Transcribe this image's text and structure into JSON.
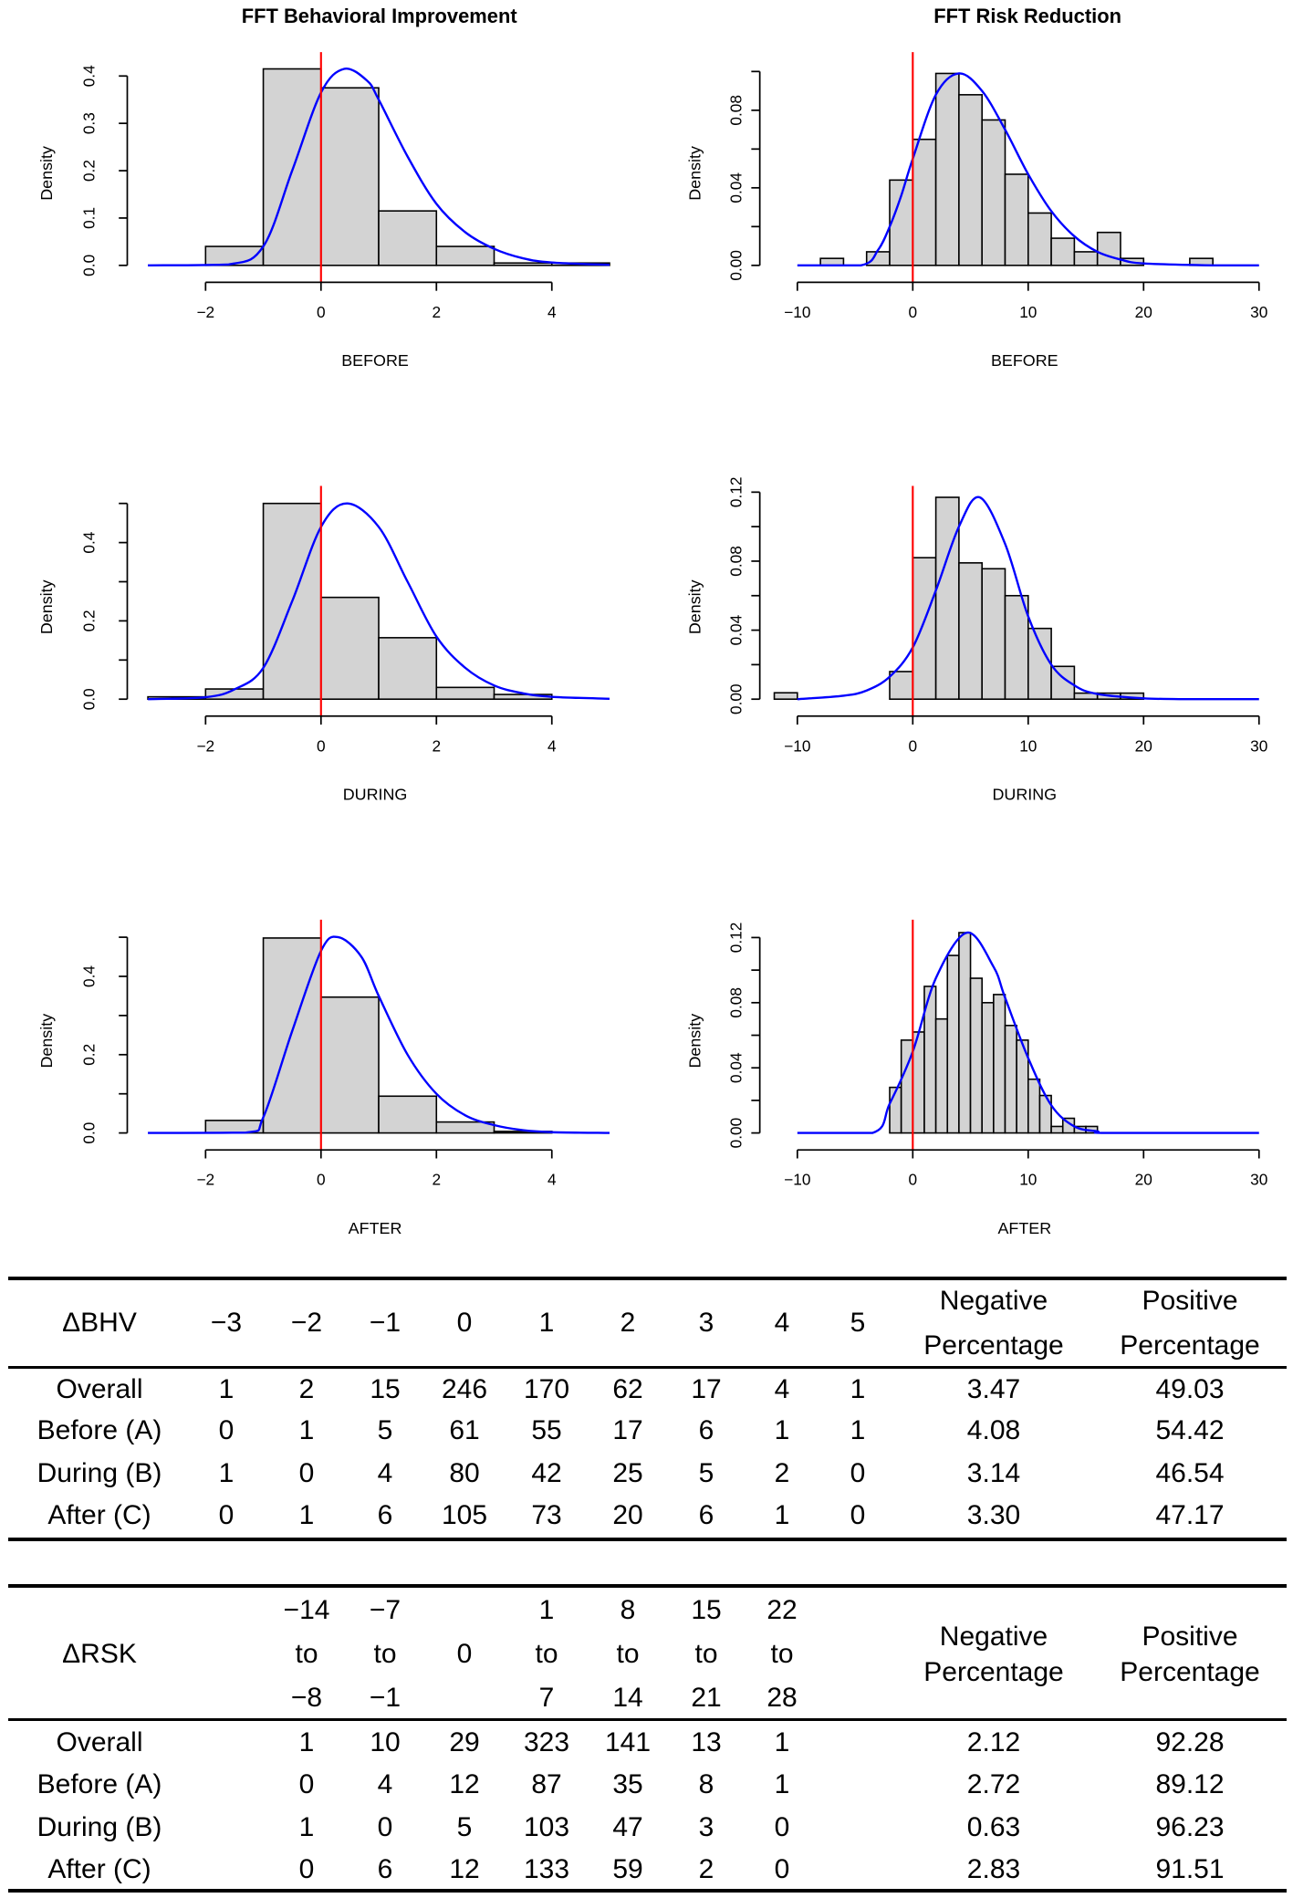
{
  "column_titles": [
    "FFT Behavioral Improvement",
    "FFT Risk Reduction"
  ],
  "chart_data": [
    {
      "type": "histogram",
      "column": 0,
      "row": 0,
      "xlabel": "BEFORE",
      "ylabel": "Density",
      "xlim": [
        -3,
        5
      ],
      "ylim": [
        0,
        0.43
      ],
      "xticks": [
        -2,
        0,
        2,
        4
      ],
      "xticklabels": [
        "−2",
        "0",
        "2",
        "4"
      ],
      "yticks": [
        0,
        0.1,
        0.2,
        0.3,
        0.4
      ],
      "yticklabels": [
        "0.0",
        "0.1",
        "0.2",
        "0.3",
        "0.4"
      ],
      "breaks": [
        -2,
        -1,
        0,
        1,
        2,
        3,
        4,
        5
      ],
      "density": [
        0.04,
        0.415,
        0.375,
        0.115,
        0.04,
        0.005,
        0.005
      ],
      "reference_line_x": 0,
      "reference_color": "#ff0000",
      "curve_color": "#0000ff",
      "bar_color": "#d3d3d3",
      "curve": [
        [
          -3,
          0
        ],
        [
          -1.6,
          0.002
        ],
        [
          -1,
          0.04
        ],
        [
          -0.5,
          0.2
        ],
        [
          0,
          0.365
        ],
        [
          0.4,
          0.415
        ],
        [
          0.8,
          0.39
        ],
        [
          1,
          0.35
        ],
        [
          1.5,
          0.23
        ],
        [
          2,
          0.13
        ],
        [
          2.5,
          0.07
        ],
        [
          3,
          0.035
        ],
        [
          3.5,
          0.015
        ],
        [
          4,
          0.006
        ],
        [
          5,
          0.001
        ]
      ]
    },
    {
      "type": "histogram",
      "column": 1,
      "row": 0,
      "xlabel": "BEFORE",
      "ylabel": "Density",
      "xlim": [
        -10,
        30
      ],
      "ylim": [
        0,
        0.105
      ],
      "xticks": [
        -10,
        0,
        10,
        20,
        30
      ],
      "xticklabels": [
        "−10",
        "0",
        "10",
        "20",
        "30"
      ],
      "yticks": [
        0,
        0.02,
        0.04,
        0.06,
        0.08,
        0.1
      ],
      "yticklabels": [
        "0.00",
        "",
        "0.04",
        "",
        "0.08",
        ""
      ],
      "breaks": [
        -8,
        -6,
        -4,
        -2,
        0,
        2,
        4,
        6,
        8,
        10,
        12,
        14,
        16,
        18,
        20,
        22,
        24,
        26
      ],
      "density": [
        0.0036,
        0,
        0.007,
        0.044,
        0.065,
        0.099,
        0.088,
        0.075,
        0.047,
        0.027,
        0.014,
        0.007,
        0.017,
        0.0036,
        0,
        0,
        0.0036
      ],
      "reference_line_x": 0,
      "reference_color": "#ff0000",
      "curve_color": "#0000ff",
      "bar_color": "#d3d3d3",
      "curve": [
        [
          -10,
          0
        ],
        [
          -4.5,
          0
        ],
        [
          -3,
          0.008
        ],
        [
          -2,
          0.02
        ],
        [
          -1,
          0.036
        ],
        [
          0,
          0.055
        ],
        [
          2,
          0.088
        ],
        [
          4,
          0.099
        ],
        [
          6,
          0.09
        ],
        [
          8,
          0.07
        ],
        [
          10,
          0.047
        ],
        [
          12,
          0.028
        ],
        [
          14,
          0.015
        ],
        [
          16,
          0.007
        ],
        [
          18,
          0.003
        ],
        [
          20,
          0.001
        ],
        [
          26,
          0
        ],
        [
          30,
          0
        ]
      ]
    },
    {
      "type": "histogram",
      "column": 0,
      "row": 1,
      "xlabel": "DURING",
      "ylabel": "Density",
      "xlim": [
        -3,
        5
      ],
      "ylim": [
        0,
        0.52
      ],
      "xticks": [
        -2,
        0,
        2,
        4
      ],
      "xticklabels": [
        "−2",
        "0",
        "2",
        "4"
      ],
      "yticks": [
        0,
        0.1,
        0.2,
        0.3,
        0.4,
        0.5
      ],
      "yticklabels": [
        "0.0",
        "",
        "0.2",
        "",
        "0.4",
        ""
      ],
      "breaks": [
        -3,
        -2,
        -1,
        0,
        1,
        2,
        3,
        4
      ],
      "density": [
        0.006,
        0.026,
        0.5,
        0.26,
        0.157,
        0.03,
        0.012
      ],
      "reference_line_x": 0,
      "reference_color": "#ff0000",
      "curve_color": "#0000ff",
      "bar_color": "#d3d3d3",
      "curve": [
        [
          -3,
          0
        ],
        [
          -2,
          0.005
        ],
        [
          -1.5,
          0.025
        ],
        [
          -1,
          0.08
        ],
        [
          -0.5,
          0.25
        ],
        [
          0,
          0.44
        ],
        [
          0.45,
          0.5
        ],
        [
          1,
          0.44
        ],
        [
          1.5,
          0.3
        ],
        [
          2,
          0.16
        ],
        [
          2.5,
          0.08
        ],
        [
          3,
          0.035
        ],
        [
          3.5,
          0.015
        ],
        [
          4,
          0.006
        ],
        [
          5,
          0.001
        ]
      ]
    },
    {
      "type": "histogram",
      "column": 1,
      "row": 1,
      "xlabel": "DURING",
      "ylabel": "Density",
      "xlim": [
        -10,
        30
      ],
      "ylim": [
        0,
        0.118
      ],
      "xticks": [
        -10,
        0,
        10,
        20,
        30
      ],
      "xticklabels": [
        "−10",
        "0",
        "10",
        "20",
        "30"
      ],
      "yticks": [
        0,
        0.02,
        0.04,
        0.06,
        0.08,
        0.1,
        0.12
      ],
      "yticklabels": [
        "0.00",
        "",
        "0.04",
        "",
        "0.08",
        "",
        "0.12"
      ],
      "breaks": [
        -12,
        -10,
        -8,
        -6,
        -4,
        -2,
        0,
        2,
        4,
        6,
        8,
        10,
        12,
        14,
        16,
        18,
        20
      ],
      "density": [
        0.0037,
        0,
        0,
        0,
        0,
        0.016,
        0.082,
        0.117,
        0.079,
        0.0756,
        0.06,
        0.041,
        0.019,
        0.0035,
        0.0035,
        0.0035
      ],
      "reference_line_x": 0,
      "reference_color": "#ff0000",
      "curve_color": "#0000ff",
      "bar_color": "#d3d3d3",
      "curve": [
        [
          -10,
          0
        ],
        [
          -6,
          0.002
        ],
        [
          -4,
          0.005
        ],
        [
          -2,
          0.013
        ],
        [
          0,
          0.03
        ],
        [
          2,
          0.063
        ],
        [
          4,
          0.1
        ],
        [
          5.8,
          0.117
        ],
        [
          8,
          0.09
        ],
        [
          10,
          0.048
        ],
        [
          12,
          0.02
        ],
        [
          14,
          0.008
        ],
        [
          16,
          0.003
        ],
        [
          20,
          0.0005
        ],
        [
          24,
          0
        ],
        [
          30,
          0
        ]
      ]
    },
    {
      "type": "histogram",
      "column": 0,
      "row": 2,
      "xlabel": "AFTER",
      "ylabel": "Density",
      "xlim": [
        -3,
        5
      ],
      "ylim": [
        0,
        0.52
      ],
      "xticks": [
        -2,
        0,
        2,
        4
      ],
      "xticklabels": [
        "−2",
        "0",
        "2",
        "4"
      ],
      "yticks": [
        0,
        0.1,
        0.2,
        0.3,
        0.4,
        0.5
      ],
      "yticklabels": [
        "0.0",
        "",
        "0.2",
        "",
        "0.4",
        ""
      ],
      "breaks": [
        -2,
        -1,
        0,
        1,
        2,
        3,
        4
      ],
      "density": [
        0.032,
        0.498,
        0.347,
        0.094,
        0.028,
        0.004
      ],
      "reference_line_x": 0,
      "reference_color": "#ff0000",
      "curve_color": "#0000ff",
      "bar_color": "#d3d3d3",
      "curve": [
        [
          -3,
          0
        ],
        [
          -1.3,
          0.001
        ],
        [
          -1,
          0.04
        ],
        [
          -0.5,
          0.26
        ],
        [
          0,
          0.465
        ],
        [
          0.3,
          0.5
        ],
        [
          0.7,
          0.45
        ],
        [
          1,
          0.35
        ],
        [
          1.5,
          0.2
        ],
        [
          2,
          0.1
        ],
        [
          2.5,
          0.045
        ],
        [
          3,
          0.02
        ],
        [
          3.5,
          0.007
        ],
        [
          4,
          0.002
        ],
        [
          5,
          0
        ]
      ]
    },
    {
      "type": "histogram",
      "column": 1,
      "row": 2,
      "xlabel": "AFTER",
      "ylabel": "Density",
      "xlim": [
        -10,
        30
      ],
      "ylim": [
        0,
        0.125
      ],
      "xticks": [
        -10,
        0,
        10,
        20,
        30
      ],
      "xticklabels": [
        "−10",
        "0",
        "10",
        "20",
        "30"
      ],
      "yticks": [
        0,
        0.02,
        0.04,
        0.06,
        0.08,
        0.1,
        0.12
      ],
      "yticklabels": [
        "0.00",
        "",
        "0.04",
        "",
        "0.08",
        "",
        "0.12"
      ],
      "breaks": [
        -2,
        -1,
        0,
        1,
        2,
        3,
        4,
        5,
        6,
        7,
        8,
        9,
        10,
        11,
        12,
        13,
        14,
        15,
        16
      ],
      "density": [
        0.028,
        0.057,
        0.062,
        0.09,
        0.07,
        0.109,
        0.123,
        0.095,
        0.08,
        0.085,
        0.066,
        0.057,
        0.033,
        0.023,
        0.004,
        0.009,
        0.004,
        0.004
      ],
      "reference_line_x": 0,
      "reference_color": "#ff0000",
      "curve_color": "#0000ff",
      "bar_color": "#d3d3d3",
      "curve": [
        [
          -10,
          0
        ],
        [
          -3.5,
          0
        ],
        [
          -2,
          0.018
        ],
        [
          0,
          0.05
        ],
        [
          2,
          0.095
        ],
        [
          4.7,
          0.123
        ],
        [
          7,
          0.102
        ],
        [
          8,
          0.083
        ],
        [
          10,
          0.046
        ],
        [
          12,
          0.017
        ],
        [
          14,
          0.004
        ],
        [
          16,
          0.001
        ],
        [
          17,
          0
        ],
        [
          30,
          0
        ]
      ]
    }
  ],
  "tables": [
    {
      "header": [
        [
          "ΔBHV"
        ],
        [
          "−3"
        ],
        [
          "−2"
        ],
        [
          "−1"
        ],
        [
          "0"
        ],
        [
          "1"
        ],
        [
          "2"
        ],
        [
          "3"
        ],
        [
          "4"
        ],
        [
          "5"
        ],
        [
          "Negative",
          "Percentage"
        ],
        [
          "Positive",
          "Percentage"
        ]
      ],
      "rows": [
        [
          "Overall",
          "1",
          "2",
          "15",
          "246",
          "170",
          "62",
          "17",
          "4",
          "1",
          "3.47",
          "49.03"
        ],
        [
          "Before (A)",
          "0",
          "1",
          "5",
          "61",
          "55",
          "17",
          "6",
          "1",
          "1",
          "4.08",
          "54.42"
        ],
        [
          "During (B)",
          "1",
          "0",
          "4",
          "80",
          "42",
          "25",
          "5",
          "2",
          "0",
          "3.14",
          "46.54"
        ],
        [
          "After (C)",
          "0",
          "1",
          "6",
          "105",
          "73",
          "20",
          "6",
          "1",
          "0",
          "3.30",
          "47.17"
        ]
      ]
    },
    {
      "header": [
        [
          "ΔRSK"
        ],
        [
          "−14",
          "to",
          "−8"
        ],
        [
          "−7",
          "to",
          "−1"
        ],
        [
          "0"
        ],
        [
          "1",
          "to",
          "7"
        ],
        [
          "8",
          "to",
          "14"
        ],
        [
          "15",
          "to",
          "21"
        ],
        [
          "22",
          "to",
          "28"
        ],
        [
          "Negative",
          "Percentage"
        ],
        [
          "Positive",
          "Percentage"
        ]
      ],
      "rows": [
        [
          "Overall",
          "1",
          "10",
          "29",
          "323",
          "141",
          "13",
          "1",
          "2.12",
          "92.28"
        ],
        [
          "Before (A)",
          "0",
          "4",
          "12",
          "87",
          "35",
          "8",
          "1",
          "2.72",
          "89.12"
        ],
        [
          "During (B)",
          "1",
          "0",
          "5",
          "103",
          "47",
          "3",
          "0",
          "0.63",
          "96.23"
        ],
        [
          "After (C)",
          "0",
          "6",
          "12",
          "133",
          "59",
          "2",
          "0",
          "2.83",
          "91.51"
        ]
      ]
    }
  ]
}
